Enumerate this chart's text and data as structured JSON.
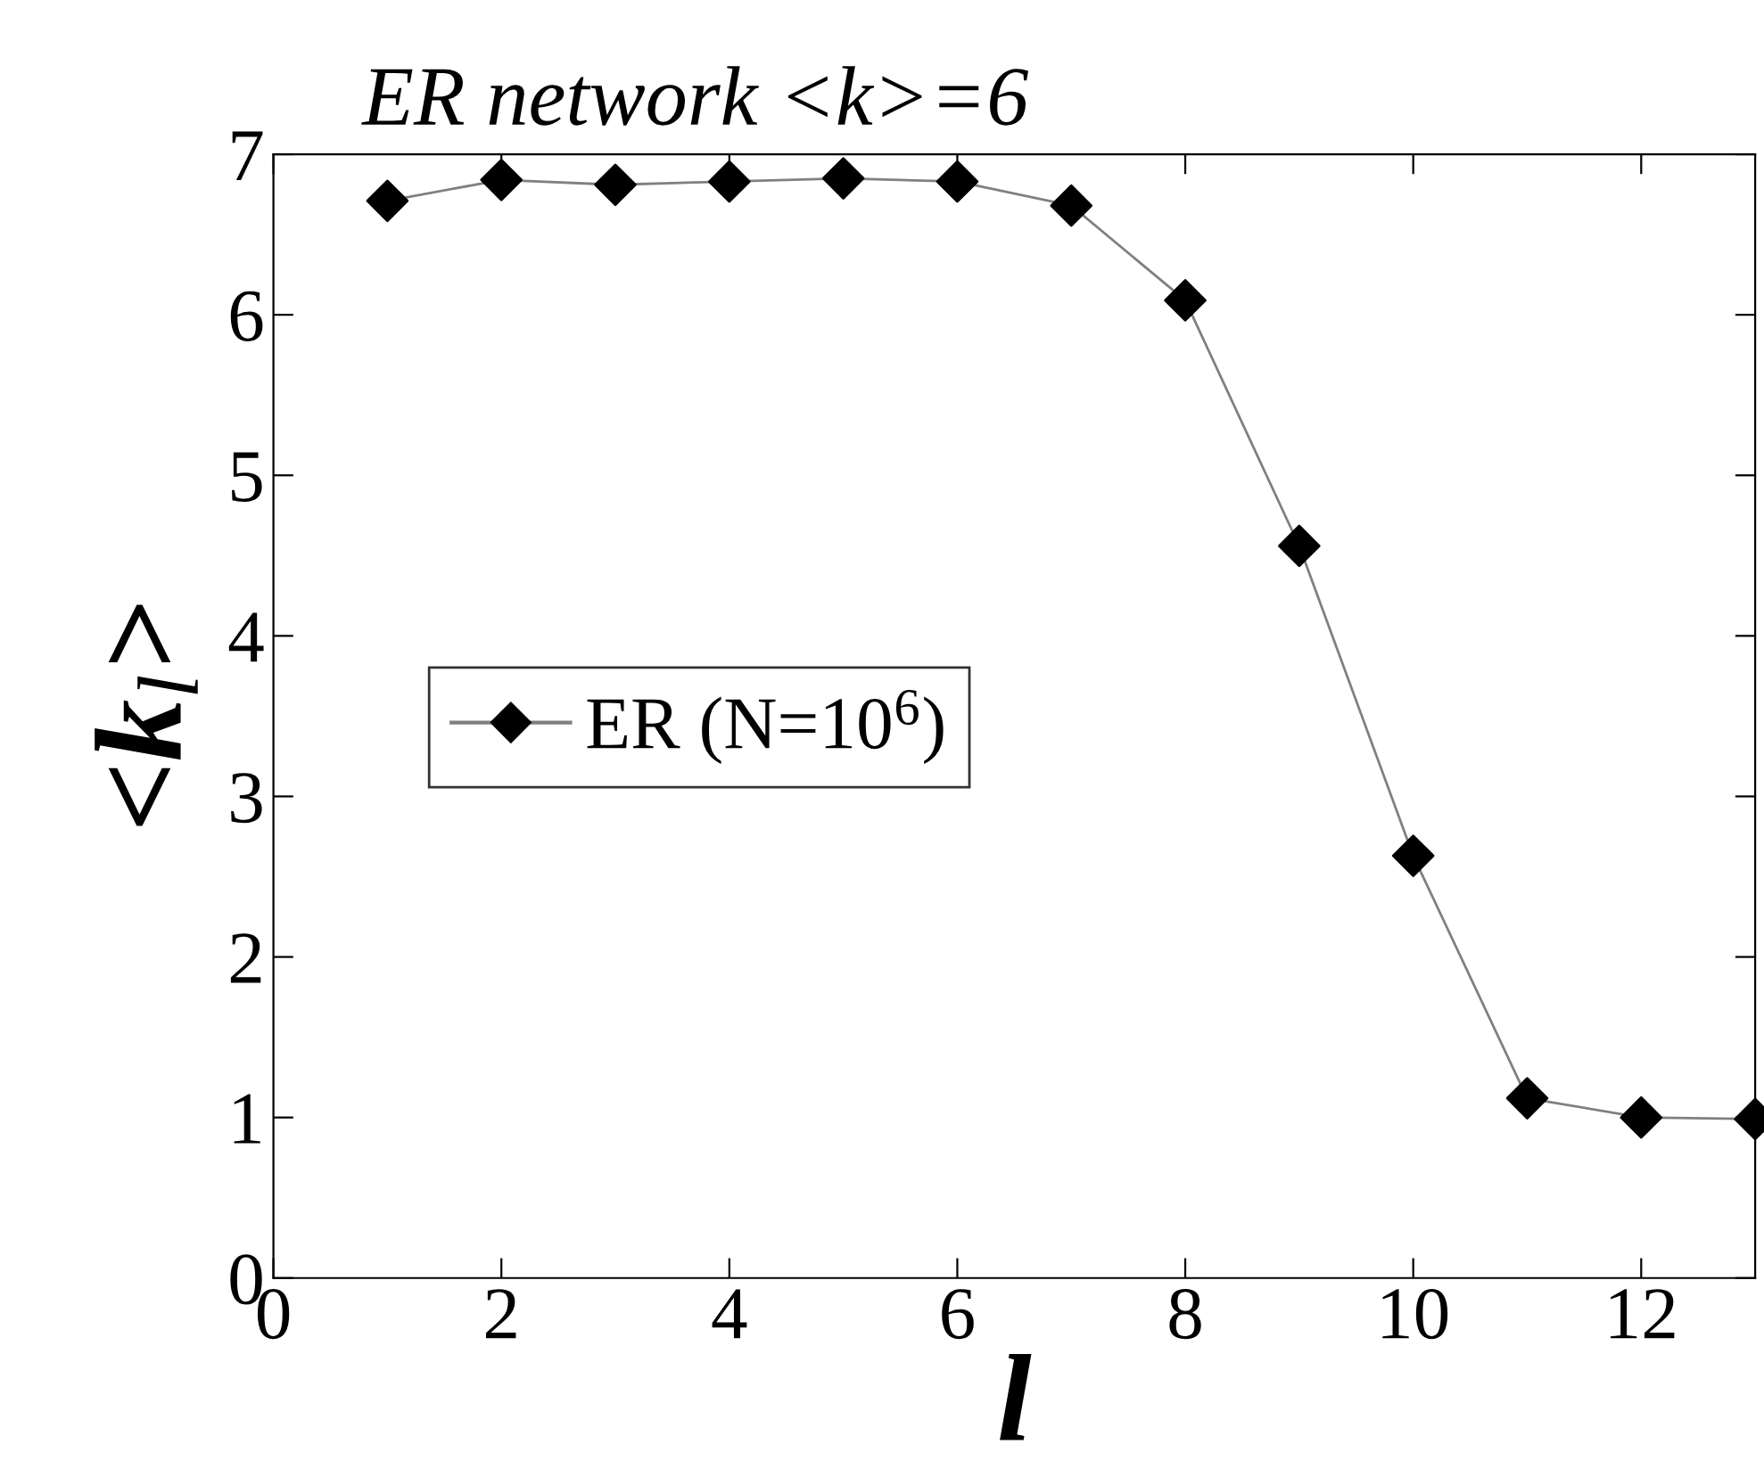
{
  "chart_data": {
    "type": "line",
    "title": "ER network <k>=6",
    "xlabel": "l",
    "ylabel": "<k$_{l}$>",
    "x": [
      1,
      2,
      3,
      4,
      5,
      6,
      7,
      8,
      9,
      10,
      11,
      12,
      13
    ],
    "series": [
      {
        "name": "ER (N=10$^{6}$)",
        "color": "#000000",
        "values": [
          6.71,
          6.84,
          6.81,
          6.83,
          6.85,
          6.83,
          6.68,
          6.09,
          4.56,
          2.63,
          1.12,
          1.0,
          0.99
        ]
      }
    ],
    "xlim": [
      0,
      13
    ],
    "ylim": [
      0,
      7
    ],
    "xticks": [
      0,
      2,
      4,
      6,
      8,
      10,
      12
    ],
    "yticks": [
      0,
      1,
      2,
      3,
      4,
      5,
      6,
      7
    ],
    "marker": "diamond",
    "line_style": "solid",
    "legend": "left",
    "grid": false
  }
}
